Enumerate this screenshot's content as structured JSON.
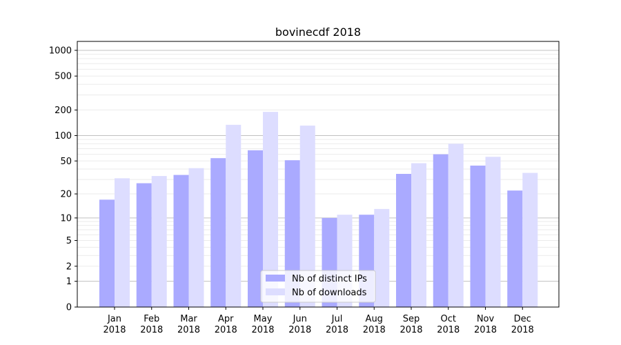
{
  "chart_data": {
    "type": "bar",
    "title": "bovinecdf 2018",
    "xlabel": "",
    "ylabel": "",
    "yscale": "log(1+x)",
    "ylim": [
      0,
      1200
    ],
    "yticks": [
      0,
      1,
      2,
      5,
      10,
      20,
      50,
      100,
      200,
      500,
      1000
    ],
    "categories": [
      "Jan\n2018",
      "Feb\n2018",
      "Mar\n2018",
      "Apr\n2018",
      "May\n2018",
      "Jun\n2018",
      "Jul\n2018",
      "Aug\n2018",
      "Sep\n2018",
      "Oct\n2018",
      "Nov\n2018",
      "Dec\n2018"
    ],
    "series": [
      {
        "name": "Nb of distinct IPs",
        "color": "#aaaaff",
        "values": [
          17,
          27,
          34,
          54,
          67,
          51,
          10,
          11,
          35,
          60,
          44,
          22
        ]
      },
      {
        "name": "Nb of downloads",
        "color": "#ddddff",
        "values": [
          31,
          33,
          41,
          134,
          190,
          131,
          11,
          13,
          47,
          80,
          56,
          36
        ]
      }
    ],
    "legend": "lower-center",
    "grid": true
  }
}
